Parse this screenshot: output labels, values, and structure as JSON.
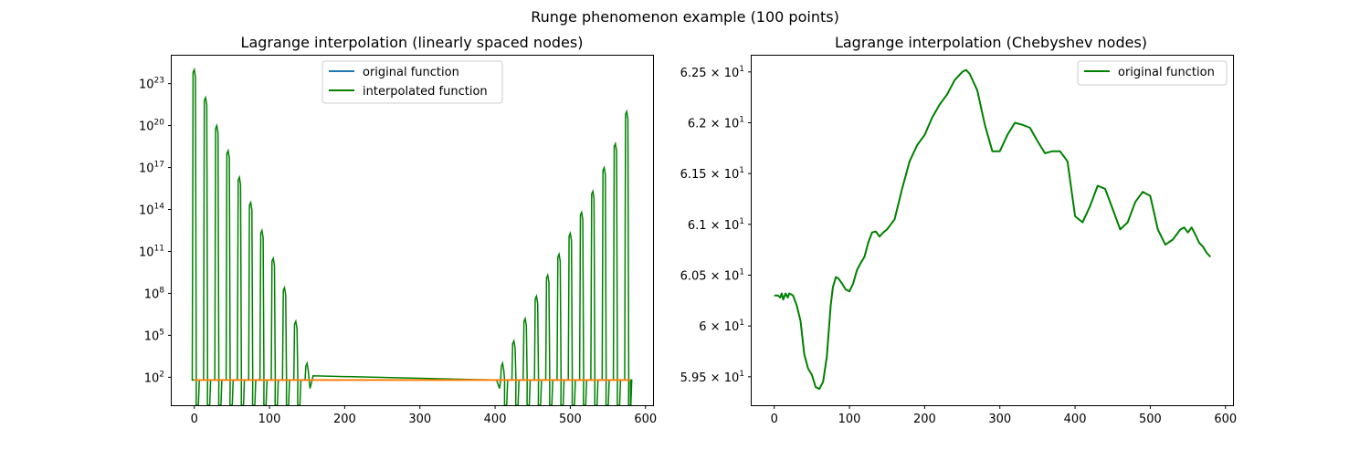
{
  "figure": {
    "suptitle": "Runge phenomenon example (100 points)"
  },
  "colors": {
    "original": "#1f77b4",
    "interpolated": "#008000",
    "flat_line": "#ff7f0e"
  },
  "left_panel": {
    "title": "Lagrange interpolation (linearly spaced nodes)",
    "legend": [
      "original function",
      "interpolated function"
    ],
    "legend_position": "upper-center",
    "x_ticks": [
      "0",
      "100",
      "200",
      "300",
      "400",
      "500",
      "600"
    ],
    "y_ticks": [
      {
        "base": "10",
        "exp": "2"
      },
      {
        "base": "10",
        "exp": "5"
      },
      {
        "base": "10",
        "exp": "8"
      },
      {
        "base": "10",
        "exp": "11"
      },
      {
        "base": "10",
        "exp": "14"
      },
      {
        "base": "10",
        "exp": "17"
      },
      {
        "base": "10",
        "exp": "20"
      },
      {
        "base": "10",
        "exp": "23"
      }
    ]
  },
  "right_panel": {
    "title": "Lagrange interpolation (Chebyshev nodes)",
    "legend": [
      "original function"
    ],
    "legend_position": "upper-right",
    "x_ticks": [
      "0",
      "100",
      "200",
      "300",
      "400",
      "500",
      "600"
    ],
    "y_ticks": [
      {
        "mant": "5.95",
        "base": "10",
        "exp": "1"
      },
      {
        "mant": "6",
        "base": "10",
        "exp": "1"
      },
      {
        "mant": "6.05",
        "base": "10",
        "exp": "1"
      },
      {
        "mant": "6.1",
        "base": "10",
        "exp": "1"
      },
      {
        "mant": "6.15",
        "base": "10",
        "exp": "1"
      },
      {
        "mant": "6.2",
        "base": "10",
        "exp": "1"
      },
      {
        "mant": "6.25",
        "base": "10",
        "exp": "1"
      }
    ]
  },
  "chart_data": [
    {
      "type": "line",
      "title": "Lagrange interpolation (linearly spaced nodes)",
      "y_scale": "log",
      "xlim": [
        -30,
        610
      ],
      "ylim_log10": [
        0,
        25
      ],
      "series": [
        {
          "name": "original function",
          "kind": "flat",
          "x": [
            0,
            580
          ],
          "log10_y": [
            1.8,
            1.8
          ]
        },
        {
          "name": "interpolated function",
          "kind": "spikes",
          "spike_x": [
            0,
            15,
            30,
            45,
            60,
            75,
            90,
            105,
            120,
            135,
            150,
            410,
            425,
            440,
            455,
            470,
            485,
            500,
            515,
            530,
            545,
            560,
            575
          ],
          "spike_log10_peak": [
            24.0,
            22.0,
            20.0,
            18.2,
            16.3,
            14.5,
            12.5,
            10.5,
            8.4,
            6.0,
            3.0,
            3.0,
            4.6,
            6.2,
            7.8,
            9.3,
            10.8,
            12.3,
            13.8,
            15.3,
            17.0,
            18.7,
            21.0
          ],
          "baseline_log10": 1.8
        }
      ]
    },
    {
      "type": "line",
      "title": "Lagrange interpolation (Chebyshev nodes)",
      "y_scale": "log",
      "xlim": [
        -30,
        610
      ],
      "ylim": [
        59.22,
        62.66
      ],
      "series": [
        {
          "name": "original function",
          "x": [
            0,
            5,
            8,
            10,
            12,
            15,
            18,
            20,
            25,
            30,
            35,
            40,
            45,
            50,
            55,
            60,
            65,
            70,
            75,
            78,
            82,
            85,
            90,
            95,
            100,
            105,
            110,
            115,
            120,
            125,
            130,
            135,
            140,
            145,
            150,
            160,
            170,
            180,
            190,
            200,
            210,
            220,
            230,
            240,
            250,
            255,
            260,
            270,
            280,
            290,
            300,
            310,
            320,
            330,
            340,
            350,
            360,
            370,
            380,
            390,
            400,
            410,
            420,
            430,
            440,
            450,
            460,
            470,
            480,
            490,
            500,
            510,
            520,
            530,
            540,
            545,
            550,
            555,
            560,
            565,
            570,
            575,
            580
          ],
          "y": [
            60.3,
            60.3,
            60.28,
            60.32,
            60.26,
            60.32,
            60.28,
            60.32,
            60.3,
            60.2,
            60.05,
            59.72,
            59.58,
            59.52,
            59.4,
            59.38,
            59.45,
            59.7,
            60.2,
            60.38,
            60.48,
            60.47,
            60.42,
            60.36,
            60.34,
            60.42,
            60.55,
            60.62,
            60.68,
            60.82,
            60.92,
            60.93,
            60.88,
            60.92,
            60.95,
            61.05,
            61.35,
            61.62,
            61.78,
            61.88,
            62.05,
            62.18,
            62.28,
            62.42,
            62.5,
            62.52,
            62.48,
            62.32,
            61.98,
            61.72,
            61.72,
            61.88,
            62.0,
            61.98,
            61.95,
            61.82,
            61.7,
            61.72,
            61.72,
            61.62,
            61.08,
            61.02,
            61.18,
            61.38,
            61.35,
            61.15,
            60.95,
            61.02,
            61.22,
            61.32,
            61.28,
            60.95,
            60.8,
            60.85,
            60.95,
            60.97,
            60.92,
            60.97,
            60.9,
            60.82,
            60.78,
            60.72,
            60.68
          ]
        }
      ]
    }
  ]
}
